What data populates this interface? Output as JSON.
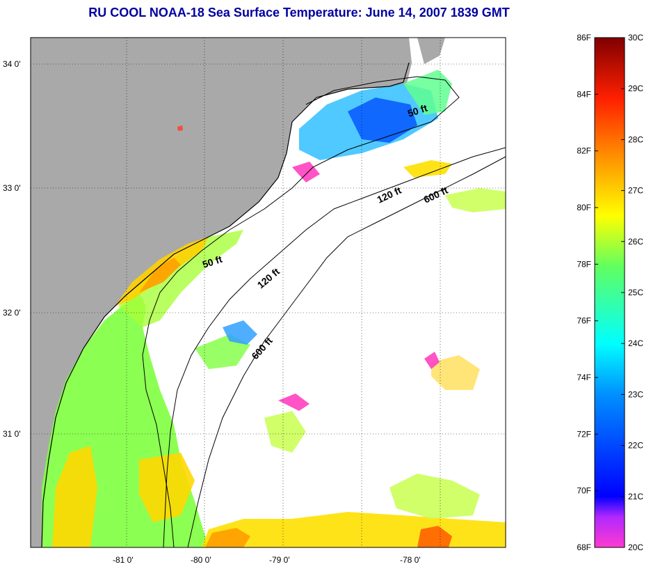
{
  "title": "RU COOL  NOAA-18  Sea Surface Temperature:  June 14, 2007 1839 GMT",
  "map": {
    "lat_labels": [
      "34 0'",
      "33 0'",
      "32 0'",
      "31 0'"
    ],
    "lon_labels": [
      "-81 0'",
      "-80 0'",
      "-79 0'",
      "-78 0'"
    ],
    "contour_labels": [
      "50 ft",
      "50 ft",
      "120 ft",
      "120 ft",
      "600 ft",
      "600 ft"
    ],
    "colors": {
      "land": "#a9a9a9",
      "no_data": "#ffffff",
      "coastline": "#000000"
    }
  },
  "colorbar": {
    "f_labels": [
      "86F",
      "84F",
      "82F",
      "80F",
      "78F",
      "76F",
      "74F",
      "72F",
      "70F",
      "68F"
    ],
    "c_labels": [
      "30C",
      "29C",
      "28C",
      "27C",
      "26C",
      "25C",
      "24C",
      "23C",
      "22C",
      "21C",
      "20C"
    ],
    "gradient": [
      "#ff3ad0",
      "#9a22ff",
      "#0000ff",
      "#0090ff",
      "#00ffff",
      "#60ff60",
      "#ffff00",
      "#ffa000",
      "#ff2000",
      "#800000"
    ]
  }
}
